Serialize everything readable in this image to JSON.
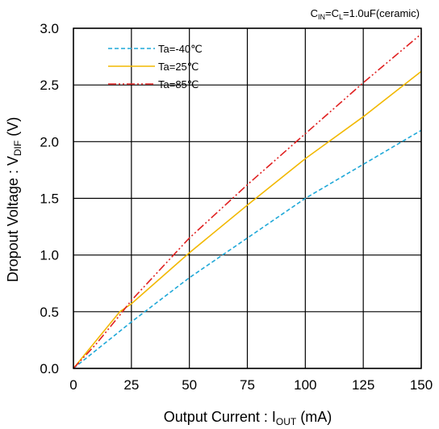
{
  "chart_data": {
    "type": "line",
    "note": {
      "prefix": "C",
      "sub1": "IN",
      "mid": "=C",
      "sub2": "L",
      "suffix": "=1.0uF(ceramic)"
    },
    "xlabel": {
      "main": "Output Current : I",
      "sub": "OUT",
      "tail": " (mA)"
    },
    "ylabel": {
      "main": "Dropout Voltage : V",
      "sub": "DIF",
      "tail": " (V)"
    },
    "xlim": [
      0,
      150
    ],
    "ylim": [
      0,
      3.0
    ],
    "xticks": [
      0,
      25,
      50,
      75,
      100,
      125,
      150
    ],
    "yticks": [
      "0.0",
      "0.5",
      "1.0",
      "1.5",
      "2.0",
      "2.5",
      "3.0"
    ],
    "grid": true,
    "legend_position": "top-left",
    "series": [
      {
        "name": "Ta=-40℃",
        "color": "#1fa8d8",
        "dash": "dashed",
        "x": [
          0,
          25,
          50,
          75,
          100,
          125,
          150
        ],
        "y": [
          0,
          0.41,
          0.8,
          1.15,
          1.5,
          1.8,
          2.1
        ]
      },
      {
        "name": "Ta=25℃",
        "color": "#f2b800",
        "dash": "solid",
        "x": [
          0,
          10,
          20,
          25,
          50,
          75,
          100,
          125,
          150
        ],
        "y": [
          0,
          0.25,
          0.5,
          0.57,
          1.02,
          1.44,
          1.85,
          2.22,
          2.62
        ]
      },
      {
        "name": "Ta=85℃",
        "color": "#e02020",
        "dash": "dashdotdot",
        "x": [
          0,
          10,
          20,
          25,
          50,
          75,
          100,
          125,
          150
        ],
        "y": [
          0,
          0.22,
          0.47,
          0.6,
          1.15,
          1.62,
          2.07,
          2.52,
          2.95
        ]
      }
    ]
  }
}
